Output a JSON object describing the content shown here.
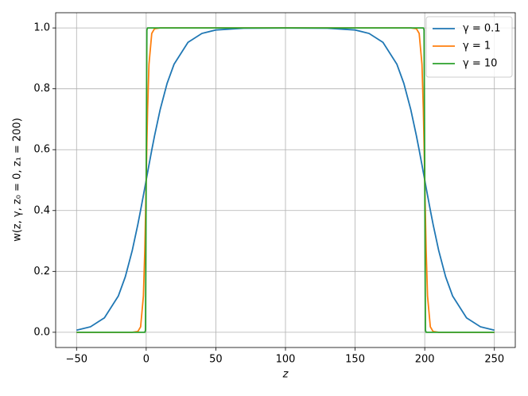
{
  "chart_data": {
    "type": "line",
    "xlabel": "z",
    "ylabel": "w(z, γ, z₀ = 0, z₁ = 200)",
    "x": [
      -50,
      -40,
      -30,
      -20,
      -15,
      -10,
      -6,
      -4,
      -2,
      -1,
      -0.5,
      0,
      0.5,
      1,
      2,
      4,
      6,
      10,
      15,
      20,
      30,
      40,
      50,
      70,
      100,
      130,
      150,
      160,
      170,
      180,
      185,
      190,
      194,
      196,
      198,
      199,
      199.5,
      200,
      200.5,
      201,
      202,
      204,
      206,
      210,
      215,
      220,
      230,
      240,
      250
    ],
    "series": [
      {
        "name": "γ = 0.1",
        "color": "#1f77b4",
        "values": [
          0.0067,
          0.018,
          0.0474,
          0.1192,
          0.1824,
          0.2689,
          0.3543,
          0.4013,
          0.4502,
          0.475,
          0.4875,
          0.5,
          0.5125,
          0.525,
          0.5498,
          0.5987,
          0.6457,
          0.7311,
          0.8176,
          0.8808,
          0.9526,
          0.982,
          0.9933,
          0.9991,
          0.9999,
          0.9991,
          0.9933,
          0.982,
          0.9526,
          0.8808,
          0.8176,
          0.7311,
          0.6457,
          0.5987,
          0.5498,
          0.525,
          0.5125,
          0.5,
          0.4875,
          0.475,
          0.4502,
          0.4013,
          0.3543,
          0.2689,
          0.1824,
          0.1192,
          0.0474,
          0.018,
          0.0067
        ]
      },
      {
        "name": "γ = 1",
        "color": "#ff7f0e",
        "values": [
          0,
          0,
          0,
          0,
          0,
          0,
          0.0025,
          0.018,
          0.1192,
          0.2689,
          0.3775,
          0.5,
          0.6225,
          0.7311,
          0.8808,
          0.982,
          0.9975,
          1,
          1,
          1,
          1,
          1,
          1,
          1,
          1,
          1,
          1,
          1,
          1,
          1,
          1,
          1,
          0.9975,
          0.982,
          0.8808,
          0.7311,
          0.6225,
          0.5,
          0.3775,
          0.2689,
          0.1192,
          0.018,
          0.0025,
          0,
          0,
          0,
          0,
          0,
          0
        ]
      },
      {
        "name": "γ = 10",
        "color": "#2ca02c",
        "values": [
          0,
          0,
          0,
          0,
          0,
          0,
          0,
          0,
          0,
          0,
          0.0067,
          0.5,
          0.9933,
          1,
          1,
          1,
          1,
          1,
          1,
          1,
          1,
          1,
          1,
          1,
          1,
          1,
          1,
          1,
          1,
          1,
          1,
          1,
          1,
          1,
          1,
          1,
          0.9933,
          0.5,
          0.0067,
          0,
          0,
          0,
          0,
          0,
          0,
          0,
          0,
          0,
          0
        ]
      }
    ],
    "xlim": [
      -65,
      265
    ],
    "xticks": [
      {
        "value": -50,
        "label": "−50"
      },
      0,
      50,
      100,
      150,
      200,
      250
    ],
    "ylim": [
      -0.05,
      1.05
    ],
    "yticks": [
      {
        "value": 0,
        "label": "0.0"
      },
      0.2,
      0.4,
      0.6,
      0.8,
      {
        "value": 1,
        "label": "1.0"
      }
    ],
    "grid": true,
    "legend": "upper right"
  }
}
